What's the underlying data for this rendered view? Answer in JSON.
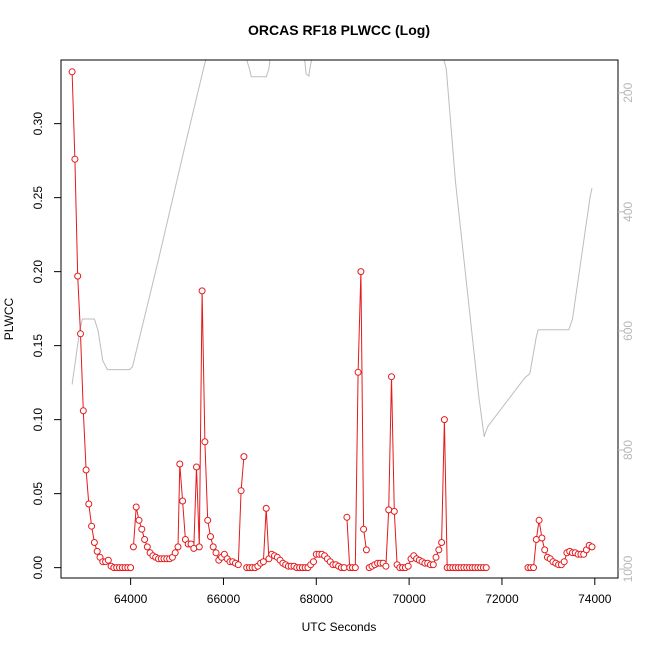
{
  "chart_data": {
    "type": "scatter",
    "title": "ORCAS RF18 PLWCC (Log)",
    "xlabel": "UTC Seconds",
    "ylabel": "PLWCC",
    "xlim": [
      62500,
      74500
    ],
    "ylim": [
      -0.007,
      0.343
    ],
    "x_ticks": [
      64000,
      66000,
      68000,
      70000,
      72000,
      74000
    ],
    "y_ticks": [
      0.0,
      0.05,
      0.1,
      0.15,
      0.2,
      0.25,
      0.3
    ],
    "y_tick_labels": [
      "0.00",
      "0.05",
      "0.10",
      "0.15",
      "0.20",
      "0.25",
      "0.30"
    ],
    "secondary_axis": {
      "side": "right",
      "ticks": [
        200,
        400,
        600,
        800,
        1000
      ],
      "lim": [
        1015,
        145
      ],
      "color": "#b8b8b8"
    },
    "series": [
      {
        "color": "#e41a1c",
        "style": "line-with-open-circles",
        "segments": [
          [
            [
              62740,
              0.335
            ],
            [
              62800,
              0.276
            ],
            [
              62860,
              0.197
            ],
            [
              62920,
              0.158
            ],
            [
              62980,
              0.106
            ],
            [
              63040,
              0.066
            ],
            [
              63100,
              0.043
            ],
            [
              63160,
              0.028
            ],
            [
              63220,
              0.017
            ],
            [
              63280,
              0.011
            ],
            [
              63340,
              0.007
            ],
            [
              63400,
              0.004
            ],
            [
              63460,
              0.004
            ],
            [
              63520,
              0.005
            ],
            [
              63580,
              0.001
            ],
            [
              63640,
              0.0
            ],
            [
              63700,
              0.0
            ],
            [
              63760,
              0.0
            ],
            [
              63820,
              0.0
            ],
            [
              63880,
              0.0
            ],
            [
              63940,
              0.0
            ],
            [
              64000,
              0.0
            ]
          ],
          [
            [
              64060,
              0.014
            ],
            [
              64120,
              0.041
            ],
            [
              64180,
              0.032
            ],
            [
              64240,
              0.026
            ],
            [
              64300,
              0.019
            ],
            [
              64360,
              0.014
            ],
            [
              64420,
              0.01
            ],
            [
              64480,
              0.008
            ],
            [
              64540,
              0.007
            ],
            [
              64600,
              0.006
            ],
            [
              64660,
              0.006
            ],
            [
              64720,
              0.006
            ],
            [
              64780,
              0.006
            ],
            [
              64840,
              0.006
            ],
            [
              64900,
              0.007
            ],
            [
              64960,
              0.01
            ],
            [
              65020,
              0.014
            ],
            [
              65060,
              0.07
            ],
            [
              65120,
              0.045
            ],
            [
              65180,
              0.019
            ],
            [
              65240,
              0.016
            ],
            [
              65300,
              0.016
            ],
            [
              65360,
              0.013
            ],
            [
              65420,
              0.068
            ],
            [
              65480,
              0.014
            ],
            [
              65540,
              0.187
            ],
            [
              65600,
              0.085
            ],
            [
              65660,
              0.032
            ],
            [
              65720,
              0.021
            ],
            [
              65780,
              0.014
            ],
            [
              65840,
              0.01
            ],
            [
              65900,
              0.005
            ],
            [
              65960,
              0.007
            ],
            [
              66020,
              0.009
            ],
            [
              66080,
              0.006
            ],
            [
              66140,
              0.004
            ],
            [
              66200,
              0.004
            ],
            [
              66260,
              0.003
            ],
            [
              66320,
              0.002
            ],
            [
              66380,
              0.052
            ],
            [
              66440,
              0.075
            ]
          ],
          [
            [
              66500,
              0.0
            ],
            [
              66560,
              0.0
            ],
            [
              66620,
              0.0
            ],
            [
              66680,
              0.0
            ],
            [
              66740,
              0.001
            ],
            [
              66800,
              0.003
            ],
            [
              66860,
              0.004
            ],
            [
              66920,
              0.04
            ],
            [
              66980,
              0.006
            ],
            [
              67040,
              0.009
            ],
            [
              67100,
              0.008
            ],
            [
              67160,
              0.007
            ],
            [
              67220,
              0.005
            ],
            [
              67280,
              0.003
            ],
            [
              67340,
              0.002
            ],
            [
              67400,
              0.001
            ],
            [
              67460,
              0.001
            ],
            [
              67520,
              0.001
            ],
            [
              67580,
              0.0
            ],
            [
              67640,
              0.0
            ],
            [
              67700,
              0.0
            ],
            [
              67760,
              0.0
            ],
            [
              67820,
              0.0
            ],
            [
              67880,
              0.002
            ],
            [
              67940,
              0.004
            ],
            [
              68000,
              0.009
            ],
            [
              68060,
              0.009
            ],
            [
              68120,
              0.009
            ],
            [
              68180,
              0.008
            ],
            [
              68240,
              0.006
            ],
            [
              68300,
              0.004
            ],
            [
              68360,
              0.002
            ],
            [
              68420,
              0.002
            ],
            [
              68480,
              0.001
            ],
            [
              68540,
              0.0
            ],
            [
              68600,
              0.0
            ]
          ],
          [
            [
              68660,
              0.034
            ],
            [
              68720,
              0.0
            ],
            [
              68780,
              0.0
            ],
            [
              68840,
              0.0
            ],
            [
              68900,
              0.132
            ],
            [
              68960,
              0.2
            ],
            [
              69020,
              0.026
            ],
            [
              69080,
              0.012
            ]
          ],
          [
            [
              69140,
              0.0
            ],
            [
              69200,
              0.001
            ],
            [
              69260,
              0.002
            ],
            [
              69320,
              0.003
            ],
            [
              69380,
              0.003
            ],
            [
              69440,
              0.003
            ],
            [
              69500,
              0.001
            ],
            [
              69560,
              0.039
            ],
            [
              69620,
              0.129
            ],
            [
              69680,
              0.038
            ],
            [
              69740,
              0.002
            ],
            [
              69800,
              0.0
            ],
            [
              69860,
              0.0
            ],
            [
              69920,
              0.0
            ],
            [
              69980,
              0.001
            ],
            [
              70040,
              0.006
            ],
            [
              70100,
              0.008
            ],
            [
              70160,
              0.006
            ],
            [
              70220,
              0.005
            ],
            [
              70280,
              0.004
            ],
            [
              70340,
              0.003
            ],
            [
              70400,
              0.003
            ],
            [
              70460,
              0.002
            ],
            [
              70520,
              0.002
            ],
            [
              70580,
              0.007
            ],
            [
              70640,
              0.012
            ],
            [
              70700,
              0.017
            ],
            [
              70760,
              0.1
            ],
            [
              70820,
              0.0
            ],
            [
              70880,
              0.0
            ],
            [
              70940,
              0.0
            ],
            [
              71000,
              0.0
            ],
            [
              71060,
              0.0
            ],
            [
              71120,
              0.0
            ],
            [
              71180,
              0.0
            ],
            [
              71240,
              0.0
            ],
            [
              71300,
              0.0
            ],
            [
              71360,
              0.0
            ],
            [
              71420,
              0.0
            ],
            [
              71480,
              0.0
            ],
            [
              71540,
              0.0
            ],
            [
              71600,
              0.0
            ],
            [
              71660,
              0.0
            ]
          ],
          [
            [
              72560,
              0.0
            ],
            [
              72620,
              0.0
            ],
            [
              72680,
              0.0
            ],
            [
              72740,
              0.019
            ],
            [
              72800,
              0.032
            ],
            [
              72860,
              0.02
            ],
            [
              72920,
              0.012
            ],
            [
              72980,
              0.007
            ],
            [
              73040,
              0.006
            ],
            [
              73100,
              0.004
            ],
            [
              73160,
              0.003
            ],
            [
              73220,
              0.002
            ],
            [
              73280,
              0.002
            ],
            [
              73340,
              0.004
            ],
            [
              73400,
              0.01
            ],
            [
              73460,
              0.011
            ],
            [
              73520,
              0.01
            ],
            [
              73580,
              0.01
            ],
            [
              73640,
              0.009
            ],
            [
              73700,
              0.009
            ],
            [
              73760,
              0.009
            ],
            [
              73820,
              0.012
            ],
            [
              73880,
              0.015
            ],
            [
              73940,
              0.014
            ]
          ]
        ]
      },
      {
        "color": "#bdbdbd",
        "style": "line",
        "axis": "secondary",
        "points": [
          [
            62740,
            690
          ],
          [
            62900,
            600
          ],
          [
            62960,
            580
          ],
          [
            63220,
            580
          ],
          [
            63300,
            600
          ],
          [
            63400,
            650
          ],
          [
            63500,
            665
          ],
          [
            63980,
            665
          ],
          [
            64040,
            660
          ],
          [
            64600,
            480
          ],
          [
            65200,
            280
          ],
          [
            65600,
            150
          ],
          [
            65620,
            140
          ],
          [
            66000,
            140
          ],
          [
            66500,
            145
          ],
          [
            66560,
            160
          ],
          [
            66600,
            173
          ],
          [
            66920,
            173
          ],
          [
            66980,
            160
          ],
          [
            67000,
            145
          ],
          [
            67750,
            145
          ],
          [
            67780,
            168
          ],
          [
            67840,
            172
          ],
          [
            67860,
            160
          ],
          [
            67900,
            145
          ],
          [
            70750,
            145
          ],
          [
            70800,
            160
          ],
          [
            71000,
            350
          ],
          [
            71500,
            710
          ],
          [
            71600,
            768
          ],
          [
            71620,
            778
          ],
          [
            71640,
            772
          ],
          [
            71700,
            760
          ],
          [
            72500,
            678
          ],
          [
            72600,
            672
          ],
          [
            72740,
            610
          ],
          [
            72780,
            598
          ],
          [
            73440,
            598
          ],
          [
            73520,
            580
          ],
          [
            73900,
            375
          ],
          [
            73940,
            360
          ]
        ]
      }
    ]
  }
}
